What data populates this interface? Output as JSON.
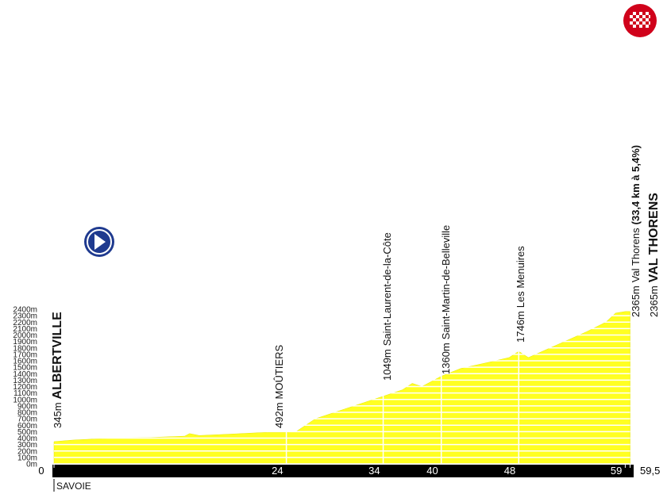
{
  "chart_data": {
    "type": "area",
    "x": [
      0,
      2,
      6,
      10,
      13.5,
      14,
      15,
      18,
      22,
      24,
      25,
      27,
      30,
      32,
      34,
      36,
      37,
      38,
      40,
      42,
      45,
      47,
      48,
      49,
      52,
      55,
      57,
      58,
      59,
      59.5
    ],
    "values": [
      345,
      370,
      400,
      410,
      430,
      470,
      440,
      460,
      490,
      492,
      500,
      700,
      850,
      950,
      1049,
      1150,
      1250,
      1200,
      1360,
      1480,
      1580,
      1650,
      1746,
      1650,
      1850,
      2050,
      2200,
      2340,
      2365,
      2365
    ],
    "color": "#ffff22",
    "xlim": [
      0,
      59.5
    ],
    "ylim": [
      0,
      2400
    ],
    "xticks": [
      0,
      24,
      34,
      40,
      48,
      59,
      {
        "value": 59.5,
        "label": "59,5"
      }
    ],
    "yticks": [
      {
        "value": 0,
        "label": "0m"
      },
      {
        "value": 100,
        "label": "100m"
      },
      {
        "value": 200,
        "label": "200m"
      },
      {
        "value": 300,
        "label": "300m"
      },
      {
        "value": 400,
        "label": "400m"
      },
      {
        "value": 500,
        "label": "500m"
      },
      {
        "value": 600,
        "label": "600m"
      },
      {
        "value": 700,
        "label": "700m"
      },
      {
        "value": 800,
        "label": "800m"
      },
      {
        "value": 900,
        "label": "900m"
      },
      {
        "value": 1000,
        "label": "1000m"
      },
      {
        "value": 1100,
        "label": "1100m"
      },
      {
        "value": 1200,
        "label": "1200m"
      },
      {
        "value": 1300,
        "label": "1300m"
      },
      {
        "value": 1400,
        "label": "1400m"
      },
      {
        "value": 1500,
        "label": "1500m"
      },
      {
        "value": 1600,
        "label": "1600m"
      },
      {
        "value": 1700,
        "label": "1700m"
      },
      {
        "value": 1800,
        "label": "1800m"
      },
      {
        "value": 1900,
        "label": "1900m"
      },
      {
        "value": 2000,
        "label": "2000m"
      },
      {
        "value": 2100,
        "label": "2100m"
      },
      {
        "value": 2200,
        "label": "2200m"
      },
      {
        "value": 2300,
        "label": "2300m"
      },
      {
        "value": 2400,
        "label": "2400m"
      }
    ],
    "grid": true,
    "annotations": [
      {
        "elevation": "345m",
        "name": "ALBERTVILLE"
      },
      {
        "elevation": "492m",
        "name": "MOÛTIERS"
      },
      {
        "elevation": "1049m",
        "name": "Saint-Laurent-de-la-Côte"
      },
      {
        "elevation": "1360m",
        "name": "Saint-Martin-de-Belleville"
      },
      {
        "elevation": "1746m",
        "name": "Les Menuires"
      },
      {
        "elevation": "2365m",
        "name": "Val Thorens",
        "detail": "(33,4 km à 5,4%)"
      },
      {
        "elevation": "2365m",
        "name": "VAL THORENS"
      }
    ],
    "region": "SAVOIE"
  }
}
